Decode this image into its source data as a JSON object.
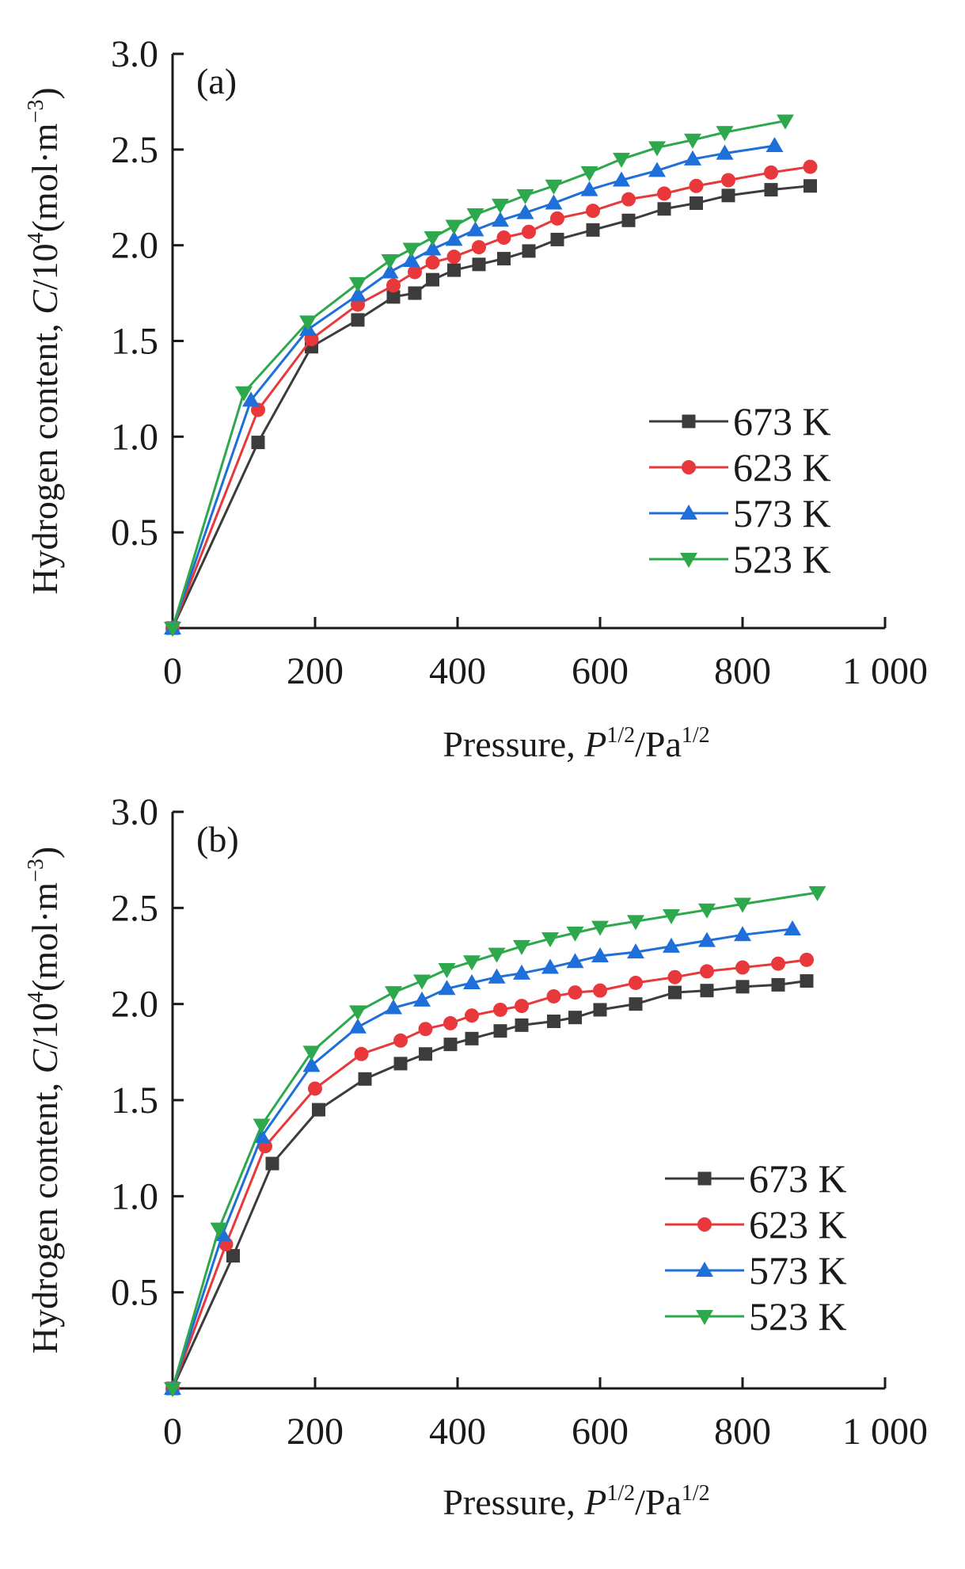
{
  "chart_data": [
    {
      "type": "line",
      "panel_label": "(a)",
      "xlabel": "Pressure, P1/2/Pa1/2",
      "ylabel": "Hydrogen content, C/104(mol·m−3)",
      "xlim": [
        0,
        1000
      ],
      "ylim": [
        0,
        3.0
      ],
      "xticks": [
        0,
        200,
        400,
        600,
        800,
        1000
      ],
      "xtick_labels": [
        "0",
        "200",
        "400",
        "600",
        "800",
        "1 000"
      ],
      "yticks": [
        0.5,
        1.0,
        1.5,
        2.0,
        2.5,
        3.0
      ],
      "ytick_labels": [
        "0.5",
        "1.0",
        "1.5",
        "2.0",
        "2.5",
        "3.0"
      ],
      "grid": false,
      "legend_position": "right",
      "series": [
        {
          "name": "673 K",
          "marker": "square",
          "color": "#3c3c3c",
          "x": [
            0,
            120,
            195,
            260,
            310,
            340,
            365,
            395,
            430,
            465,
            500,
            540,
            590,
            640,
            690,
            735,
            780,
            840,
            895
          ],
          "y": [
            0,
            0.97,
            1.47,
            1.61,
            1.73,
            1.75,
            1.82,
            1.87,
            1.9,
            1.93,
            1.97,
            2.03,
            2.08,
            2.13,
            2.19,
            2.22,
            2.26,
            2.29,
            2.31
          ]
        },
        {
          "name": "623 K",
          "marker": "circle",
          "color": "#e8383c",
          "x": [
            0,
            120,
            195,
            260,
            310,
            340,
            365,
            395,
            430,
            465,
            500,
            540,
            590,
            640,
            690,
            735,
            780,
            840,
            895
          ],
          "y": [
            0,
            1.14,
            1.51,
            1.69,
            1.79,
            1.86,
            1.91,
            1.94,
            1.99,
            2.04,
            2.07,
            2.14,
            2.18,
            2.24,
            2.27,
            2.31,
            2.34,
            2.38,
            2.41
          ]
        },
        {
          "name": "573 K",
          "marker": "triangle-up",
          "color": "#1e6fd9",
          "x": [
            0,
            110,
            190,
            260,
            305,
            335,
            365,
            395,
            425,
            460,
            495,
            535,
            585,
            630,
            680,
            730,
            775,
            845
          ],
          "y": [
            0,
            1.19,
            1.56,
            1.74,
            1.86,
            1.92,
            1.98,
            2.03,
            2.08,
            2.13,
            2.17,
            2.22,
            2.29,
            2.34,
            2.39,
            2.45,
            2.48,
            2.52
          ]
        },
        {
          "name": "523 K",
          "marker": "triangle-down",
          "color": "#2ea84c",
          "x": [
            0,
            100,
            190,
            260,
            305,
            335,
            365,
            395,
            425,
            460,
            495,
            535,
            585,
            630,
            680,
            730,
            775,
            860
          ],
          "y": [
            0,
            1.23,
            1.6,
            1.8,
            1.92,
            1.98,
            2.04,
            2.1,
            2.16,
            2.21,
            2.26,
            2.31,
            2.38,
            2.45,
            2.51,
            2.55,
            2.59,
            2.65
          ]
        }
      ]
    },
    {
      "type": "line",
      "panel_label": "(b)",
      "xlabel": "Pressure, P1/2/Pa1/2",
      "ylabel": "Hydrogen content, C/104(mol·m−3)",
      "xlim": [
        0,
        1000
      ],
      "ylim": [
        0,
        3.0
      ],
      "xticks": [
        0,
        200,
        400,
        600,
        800,
        1000
      ],
      "xtick_labels": [
        "0",
        "200",
        "400",
        "600",
        "800",
        "1 000"
      ],
      "yticks": [
        0.5,
        1.0,
        1.5,
        2.0,
        2.5,
        3.0
      ],
      "ytick_labels": [
        "0.5",
        "1.0",
        "1.5",
        "2.0",
        "2.5",
        "3.0"
      ],
      "grid": false,
      "legend_position": "right",
      "series": [
        {
          "name": "673 K",
          "marker": "square",
          "color": "#3c3c3c",
          "x": [
            0,
            85,
            140,
            205,
            270,
            320,
            355,
            390,
            420,
            460,
            490,
            535,
            565,
            600,
            650,
            705,
            750,
            800,
            850,
            890
          ],
          "y": [
            0,
            0.69,
            1.17,
            1.45,
            1.61,
            1.69,
            1.74,
            1.79,
            1.82,
            1.86,
            1.89,
            1.91,
            1.93,
            1.97,
            2.0,
            2.06,
            2.07,
            2.09,
            2.1,
            2.12
          ]
        },
        {
          "name": "623 K",
          "marker": "circle",
          "color": "#e8383c",
          "x": [
            0,
            75,
            130,
            200,
            265,
            320,
            355,
            390,
            420,
            460,
            490,
            535,
            565,
            600,
            650,
            705,
            750,
            800,
            850,
            890
          ],
          "y": [
            0,
            0.75,
            1.26,
            1.56,
            1.74,
            1.81,
            1.87,
            1.9,
            1.94,
            1.97,
            1.99,
            2.04,
            2.06,
            2.07,
            2.11,
            2.14,
            2.17,
            2.19,
            2.21,
            2.23
          ]
        },
        {
          "name": "573 K",
          "marker": "triangle-up",
          "color": "#1e6fd9",
          "x": [
            0,
            70,
            125,
            195,
            260,
            310,
            350,
            385,
            420,
            455,
            490,
            530,
            565,
            600,
            650,
            700,
            750,
            800,
            870
          ],
          "y": [
            0,
            0.8,
            1.31,
            1.68,
            1.88,
            1.98,
            2.02,
            2.08,
            2.11,
            2.14,
            2.16,
            2.19,
            2.22,
            2.25,
            2.27,
            2.3,
            2.33,
            2.36,
            2.39
          ]
        },
        {
          "name": "523 K",
          "marker": "triangle-down",
          "color": "#2ea84c",
          "x": [
            0,
            65,
            125,
            195,
            260,
            310,
            350,
            385,
            420,
            455,
            490,
            530,
            565,
            600,
            650,
            700,
            750,
            800,
            905
          ],
          "y": [
            0,
            0.83,
            1.37,
            1.75,
            1.96,
            2.06,
            2.12,
            2.18,
            2.22,
            2.26,
            2.3,
            2.34,
            2.37,
            2.4,
            2.43,
            2.46,
            2.49,
            2.52,
            2.58
          ]
        }
      ]
    }
  ]
}
